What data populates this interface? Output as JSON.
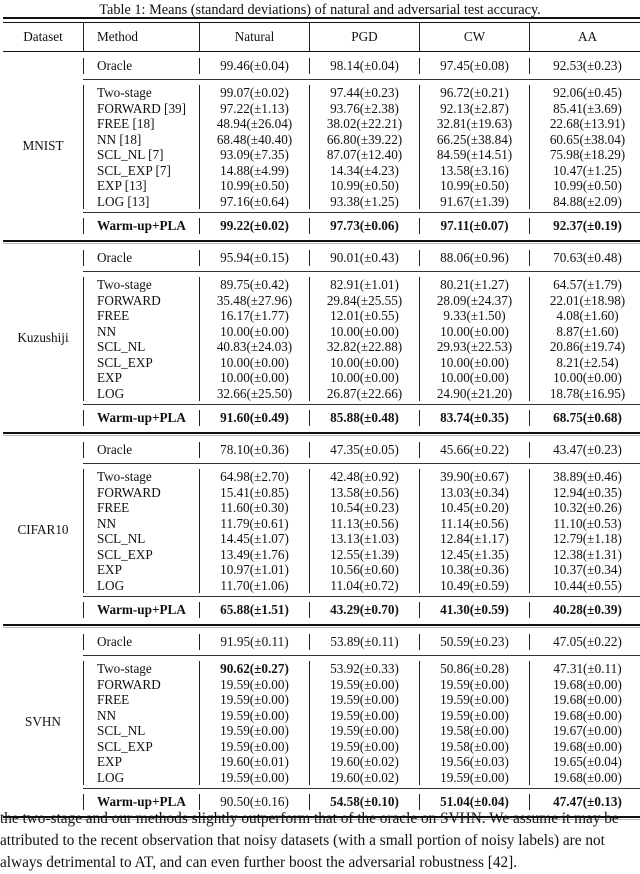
{
  "caption": "Table 1: Means (standard deviations) of natural and adversarial test accuracy.",
  "table": {
    "headers": [
      "Dataset",
      "Method",
      "Natural",
      "PGD",
      "CW",
      "AA"
    ],
    "datasets": [
      {
        "name": "MNIST",
        "oracle": {
          "method": "Oracle",
          "values": [
            "99.46(±0.04)",
            "98.14(±0.04)",
            "97.45(±0.08)",
            "92.53(±0.23)"
          ],
          "bold": [
            false,
            false,
            false,
            false
          ]
        },
        "methods": [
          {
            "method": "Two-stage",
            "values": [
              "99.07(±0.02)",
              "97.44(±0.23)",
              "96.72(±0.21)",
              "92.06(±0.45)"
            ],
            "bold": [
              false,
              false,
              false,
              false
            ]
          },
          {
            "method": "FORWARD [39]",
            "values": [
              "97.22(±1.13)",
              "93.76(±2.38)",
              "92.13(±2.87)",
              "85.41(±3.69)"
            ],
            "bold": [
              false,
              false,
              false,
              false
            ]
          },
          {
            "method": "FREE [18]",
            "values": [
              "48.94(±26.04)",
              "38.02(±22.21)",
              "32.81(±19.63)",
              "22.68(±13.91)"
            ],
            "bold": [
              false,
              false,
              false,
              false
            ]
          },
          {
            "method": "NN [18]",
            "values": [
              "68.48(±40.40)",
              "66.80(±39.22)",
              "66.25(±38.84)",
              "60.65(±38.04)"
            ],
            "bold": [
              false,
              false,
              false,
              false
            ]
          },
          {
            "method": "SCL_NL [7]",
            "values": [
              "93.09(±7.35)",
              "87.07(±12.40)",
              "84.59(±14.51)",
              "75.98(±18.29)"
            ],
            "bold": [
              false,
              false,
              false,
              false
            ]
          },
          {
            "method": "SCL_EXP [7]",
            "values": [
              "14.88(±4.99)",
              "14.34(±4.23)",
              "13.58(±3.16)",
              "10.47(±1.25)"
            ],
            "bold": [
              false,
              false,
              false,
              false
            ]
          },
          {
            "method": "EXP [13]",
            "values": [
              "10.99(±0.50)",
              "10.99(±0.50)",
              "10.99(±0.50)",
              "10.99(±0.50)"
            ],
            "bold": [
              false,
              false,
              false,
              false
            ]
          },
          {
            "method": "LOG [13]",
            "values": [
              "97.16(±0.64)",
              "93.38(±1.25)",
              "91.67(±1.39)",
              "84.88(±2.09)"
            ],
            "bold": [
              false,
              false,
              false,
              false
            ]
          }
        ],
        "ours": {
          "method": "Warm-up+PLA",
          "values": [
            "99.22(±0.02)",
            "97.73(±0.06)",
            "97.11(±0.07)",
            "92.37(±0.19)"
          ],
          "bold": [
            true,
            true,
            true,
            true
          ]
        }
      },
      {
        "name": "Kuzushiji",
        "oracle": {
          "method": "Oracle",
          "values": [
            "95.94(±0.15)",
            "90.01(±0.43)",
            "88.06(±0.96)",
            "70.63(±0.48)"
          ],
          "bold": [
            false,
            false,
            false,
            false
          ]
        },
        "methods": [
          {
            "method": "Two-stage",
            "values": [
              "89.75(±0.42)",
              "82.91(±1.01)",
              "80.21(±1.27)",
              "64.57(±1.79)"
            ],
            "bold": [
              false,
              false,
              false,
              false
            ]
          },
          {
            "method": "FORWARD",
            "values": [
              "35.48(±27.96)",
              "29.84(±25.55)",
              "28.09(±24.37)",
              "22.01(±18.98)"
            ],
            "bold": [
              false,
              false,
              false,
              false
            ]
          },
          {
            "method": "FREE",
            "values": [
              "16.17(±1.77)",
              "12.01(±0.55)",
              "9.33(±1.50)",
              "4.08(±1.60)"
            ],
            "bold": [
              false,
              false,
              false,
              false
            ]
          },
          {
            "method": "NN",
            "values": [
              "10.00(±0.00)",
              "10.00(±0.00)",
              "10.00(±0.00)",
              "8.87(±1.60)"
            ],
            "bold": [
              false,
              false,
              false,
              false
            ]
          },
          {
            "method": "SCL_NL",
            "values": [
              "40.83(±24.03)",
              "32.82(±22.88)",
              "29.93(±22.53)",
              "20.86(±19.74)"
            ],
            "bold": [
              false,
              false,
              false,
              false
            ]
          },
          {
            "method": "SCL_EXP",
            "values": [
              "10.00(±0.00)",
              "10.00(±0.00)",
              "10.00(±0.00)",
              "8.21(±2.54)"
            ],
            "bold": [
              false,
              false,
              false,
              false
            ]
          },
          {
            "method": "EXP",
            "values": [
              "10.00(±0.00)",
              "10.00(±0.00)",
              "10.00(±0.00)",
              "10.00(±0.00)"
            ],
            "bold": [
              false,
              false,
              false,
              false
            ]
          },
          {
            "method": "LOG",
            "values": [
              "32.66(±25.50)",
              "26.87(±22.66)",
              "24.90(±21.20)",
              "18.78(±16.95)"
            ],
            "bold": [
              false,
              false,
              false,
              false
            ]
          }
        ],
        "ours": {
          "method": "Warm-up+PLA",
          "values": [
            "91.60(±0.49)",
            "85.88(±0.48)",
            "83.74(±0.35)",
            "68.75(±0.68)"
          ],
          "bold": [
            true,
            true,
            true,
            true
          ]
        }
      },
      {
        "name": "CIFAR10",
        "oracle": {
          "method": "Oracle",
          "values": [
            "78.10(±0.36)",
            "47.35(±0.05)",
            "45.66(±0.22)",
            "43.47(±0.23)"
          ],
          "bold": [
            false,
            false,
            false,
            false
          ]
        },
        "methods": [
          {
            "method": "Two-stage",
            "values": [
              "64.98(±2.70)",
              "42.48(±0.92)",
              "39.90(±0.67)",
              "38.89(±0.46)"
            ],
            "bold": [
              false,
              false,
              false,
              false
            ]
          },
          {
            "method": "FORWARD",
            "values": [
              "15.41(±0.85)",
              "13.58(±0.56)",
              "13.03(±0.34)",
              "12.94(±0.35)"
            ],
            "bold": [
              false,
              false,
              false,
              false
            ]
          },
          {
            "method": "FREE",
            "values": [
              "11.60(±0.30)",
              "10.54(±0.23)",
              "10.45(±0.20)",
              "10.32(±0.26)"
            ],
            "bold": [
              false,
              false,
              false,
              false
            ]
          },
          {
            "method": "NN",
            "values": [
              "11.79(±0.61)",
              "11.13(±0.56)",
              "11.14(±0.56)",
              "11.10(±0.53)"
            ],
            "bold": [
              false,
              false,
              false,
              false
            ]
          },
          {
            "method": "SCL_NL",
            "values": [
              "14.45(±1.07)",
              "13.13(±1.03)",
              "12.84(±1.17)",
              "12.79(±1.18)"
            ],
            "bold": [
              false,
              false,
              false,
              false
            ]
          },
          {
            "method": "SCL_EXP",
            "values": [
              "13.49(±1.76)",
              "12.55(±1.39)",
              "12.45(±1.35)",
              "12.38(±1.31)"
            ],
            "bold": [
              false,
              false,
              false,
              false
            ]
          },
          {
            "method": "EXP",
            "values": [
              "10.97(±1.01)",
              "10.56(±0.60)",
              "10.38(±0.36)",
              "10.37(±0.34)"
            ],
            "bold": [
              false,
              false,
              false,
              false
            ]
          },
          {
            "method": "LOG",
            "values": [
              "11.70(±1.06)",
              "11.04(±0.72)",
              "10.49(±0.59)",
              "10.44(±0.55)"
            ],
            "bold": [
              false,
              false,
              false,
              false
            ]
          }
        ],
        "ours": {
          "method": "Warm-up+PLA",
          "values": [
            "65.88(±1.51)",
            "43.29(±0.70)",
            "41.30(±0.59)",
            "40.28(±0.39)"
          ],
          "bold": [
            true,
            true,
            true,
            true
          ]
        }
      },
      {
        "name": "SVHN",
        "oracle": {
          "method": "Oracle",
          "values": [
            "91.95(±0.11)",
            "53.89(±0.11)",
            "50.59(±0.23)",
            "47.05(±0.22)"
          ],
          "bold": [
            false,
            false,
            false,
            false
          ]
        },
        "methods": [
          {
            "method": "Two-stage",
            "values": [
              "90.62(±0.27)",
              "53.92(±0.33)",
              "50.86(±0.28)",
              "47.31(±0.11)"
            ],
            "bold": [
              true,
              false,
              false,
              false
            ]
          },
          {
            "method": "FORWARD",
            "values": [
              "19.59(±0.00)",
              "19.59(±0.00)",
              "19.59(±0.00)",
              "19.68(±0.00)"
            ],
            "bold": [
              false,
              false,
              false,
              false
            ]
          },
          {
            "method": "FREE",
            "values": [
              "19.59(±0.00)",
              "19.59(±0.00)",
              "19.59(±0.00)",
              "19.68(±0.00)"
            ],
            "bold": [
              false,
              false,
              false,
              false
            ]
          },
          {
            "method": "NN",
            "values": [
              "19.59(±0.00)",
              "19.59(±0.00)",
              "19.59(±0.00)",
              "19.68(±0.00)"
            ],
            "bold": [
              false,
              false,
              false,
              false
            ]
          },
          {
            "method": "SCL_NL",
            "values": [
              "19.59(±0.00)",
              "19.59(±0.00)",
              "19.58(±0.00)",
              "19.67(±0.00)"
            ],
            "bold": [
              false,
              false,
              false,
              false
            ]
          },
          {
            "method": "SCL_EXP",
            "values": [
              "19.59(±0.00)",
              "19.59(±0.00)",
              "19.58(±0.00)",
              "19.68(±0.00)"
            ],
            "bold": [
              false,
              false,
              false,
              false
            ]
          },
          {
            "method": "EXP",
            "values": [
              "19.60(±0.01)",
              "19.60(±0.02)",
              "19.56(±0.03)",
              "19.65(±0.04)"
            ],
            "bold": [
              false,
              false,
              false,
              false
            ]
          },
          {
            "method": "LOG",
            "values": [
              "19.59(±0.00)",
              "19.60(±0.02)",
              "19.59(±0.00)",
              "19.68(±0.00)"
            ],
            "bold": [
              false,
              false,
              false,
              false
            ]
          }
        ],
        "ours": {
          "method": "Warm-up+PLA",
          "values": [
            "90.50(±0.16)",
            "54.58(±0.10)",
            "51.04(±0.04)",
            "47.47(±0.13)"
          ],
          "bold": [
            false,
            true,
            true,
            true
          ]
        }
      }
    ]
  },
  "paragraph": [
    "the two-stage and our methods slightly outperform that of the oracle on SVHN. We assume it may be",
    "attributed to the recent observation that noisy datasets (with a small portion of noisy labels) are not",
    "always detrimental to AT, and can even further boost the adversarial robustness [42]."
  ]
}
